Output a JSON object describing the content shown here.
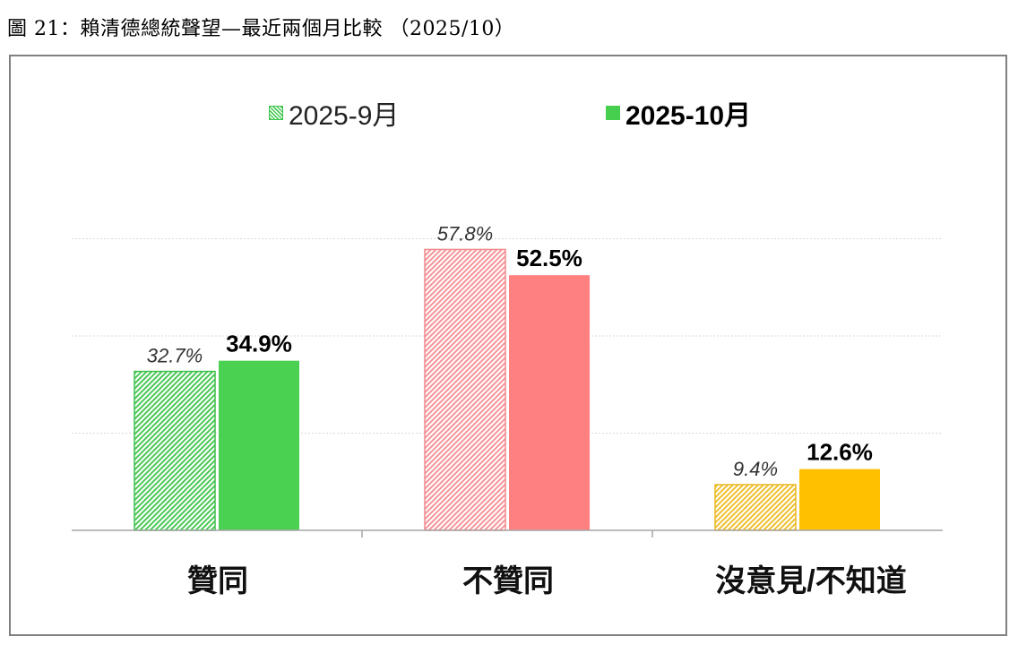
{
  "caption": "圖 21：賴清德總統聲望—最近兩個月比較 （2025/10）",
  "chart_data": {
    "type": "bar",
    "title": "",
    "xlabel": "",
    "ylabel": "",
    "ylim": [
      0,
      80
    ],
    "grid": true,
    "legend_position": "top-center",
    "categories": [
      "贊同",
      "不贊同",
      "沒意見/不知道"
    ],
    "series": [
      {
        "name": "2025-9月",
        "values": [
          32.7,
          57.8,
          9.4
        ],
        "labels": [
          "32.7%",
          "57.8%",
          "9.4%"
        ],
        "style": "hatched"
      },
      {
        "name": "2025-10月",
        "values": [
          34.9,
          52.5,
          12.6
        ],
        "labels": [
          "34.9%",
          "52.5%",
          "12.6%"
        ],
        "style": "solid"
      }
    ],
    "colors": {
      "approve_solid": "#4bd152",
      "approve_hatch": "#3fbf4c",
      "disapprove_solid": "#ff8080",
      "disapprove_hatch": "#f28a8f",
      "neutral_solid": "#ffc000",
      "neutral_hatch": "#e8b722",
      "gridline": "#d9d9d9",
      "axis": "#a6a6a6"
    }
  }
}
